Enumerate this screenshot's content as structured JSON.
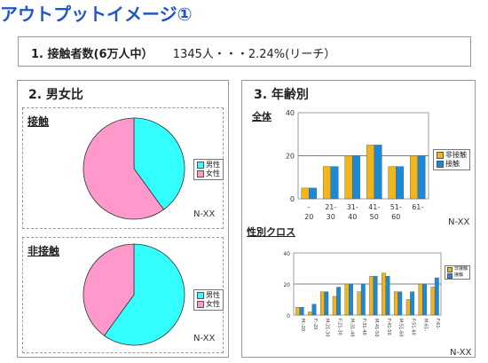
{
  "page": {
    "title": "アウトプットイメージ①",
    "reach_label": "1. 接触者数(6万人中）",
    "reach_value": "1345人・・・2.24%(リーチ）"
  },
  "gender": {
    "title": "2. 男女比",
    "n_label": "N-XX"
  },
  "age": {
    "title": "3. 年齢別",
    "n_label": "N-XX"
  },
  "colors": {
    "title_blue": "#1f56c8",
    "male_cyan": "#33ffff",
    "female_pink": "#ff99cc",
    "non_contact_orange": "#f2b51b",
    "contact_blue": "#1a8ad6"
  },
  "chart_data": [
    {
      "type": "pie",
      "title": "接触",
      "labels": [
        "男性",
        "女性"
      ],
      "values": [
        40,
        60
      ],
      "legend": "right"
    },
    {
      "type": "pie",
      "title": "非接触",
      "labels": [
        "男性",
        "女性"
      ],
      "values": [
        60,
        40
      ],
      "legend": "right"
    },
    {
      "type": "bar",
      "title": "全体",
      "categories": [
        "-20",
        "21-30",
        "31-40",
        "41-50",
        "51-60",
        "61-"
      ],
      "series": [
        {
          "name": "非接触",
          "values": [
            5,
            15,
            20,
            25,
            15,
            20
          ]
        },
        {
          "name": "接触",
          "values": [
            5,
            15,
            20,
            25,
            15,
            20
          ]
        }
      ],
      "ylim": [
        0,
        40
      ],
      "yticks": [
        0,
        20,
        40
      ],
      "grid": true,
      "legend": "right"
    },
    {
      "type": "bar",
      "title": "性別クロス",
      "categories": [
        "M:-20",
        "F:-20",
        "M:21-30",
        "F:21-30",
        "M:31-40",
        "F:31-40",
        "M:41-50",
        "F:41-50",
        "M:51-60",
        "F:51-60",
        "M:61-",
        "F:61-"
      ],
      "series": [
        {
          "name": "非接触",
          "values": [
            5,
            2,
            15,
            12,
            20,
            15,
            25,
            27,
            15,
            10,
            20,
            18
          ]
        },
        {
          "name": "接触",
          "values": [
            5,
            7,
            15,
            18,
            20,
            20,
            25,
            25,
            15,
            15,
            20,
            24
          ]
        }
      ],
      "ylim": [
        0,
        40
      ],
      "yticks": [
        0,
        20,
        40
      ],
      "grid": true,
      "legend": "right"
    }
  ]
}
